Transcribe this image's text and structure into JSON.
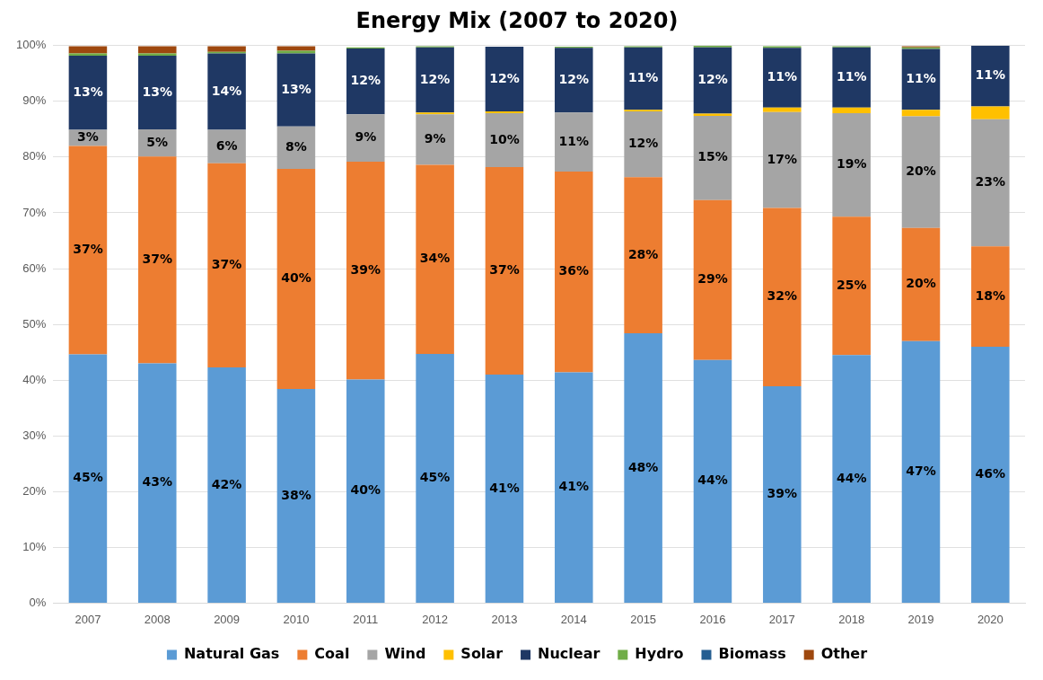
{
  "chart_data": {
    "type": "bar",
    "title": "Energy Mix (2007 to 2020)",
    "stacked": true,
    "grid": "y",
    "legend": "bottom",
    "categories": [
      "2007",
      "2008",
      "2009",
      "2010",
      "2011",
      "2012",
      "2013",
      "2014",
      "2015",
      "2016",
      "2017",
      "2018",
      "2019",
      "2020"
    ],
    "ylim": [
      0,
      100
    ],
    "yticks": [
      {
        "value": 0,
        "label": "0%"
      },
      {
        "value": 10,
        "label": "10%"
      },
      {
        "value": 20,
        "label": "20%"
      },
      {
        "value": 30,
        "label": "30%"
      },
      {
        "value": 40,
        "label": "40%"
      },
      {
        "value": 50,
        "label": "50%"
      },
      {
        "value": 60,
        "label": "60%"
      },
      {
        "value": 70,
        "label": "70%"
      },
      {
        "value": 80,
        "label": "80%"
      },
      {
        "value": 90,
        "label": "90%"
      },
      {
        "value": 100,
        "label": "100%"
      }
    ],
    "series": [
      {
        "name": "Natural Gas",
        "color": "#5b9bd5",
        "values": [
          44.6,
          43.0,
          42.3,
          38.4,
          40.1,
          44.7,
          41.0,
          41.4,
          48.4,
          43.6,
          38.9,
          44.5,
          47.0,
          46.0
        ],
        "value_labels": [
          "45%",
          "43%",
          "42%",
          "38%",
          "40%",
          "45%",
          "41%",
          "41%",
          "48%",
          "44%",
          "39%",
          "44%",
          "47%",
          "46%"
        ]
      },
      {
        "name": "Coal",
        "color": "#ed7d31",
        "values": [
          37.4,
          37.1,
          36.6,
          39.5,
          39.1,
          33.9,
          37.2,
          36.0,
          28.0,
          28.7,
          32.0,
          24.8,
          20.3,
          18.0
        ],
        "value_labels": [
          "37%",
          "37%",
          "37%",
          "40%",
          "39%",
          "34%",
          "37%",
          "36%",
          "28%",
          "29%",
          "32%",
          "25%",
          "20%",
          "18%"
        ]
      },
      {
        "name": "Wind",
        "color": "#a5a5a5",
        "values": [
          2.9,
          4.9,
          6.0,
          7.6,
          8.5,
          9.1,
          9.7,
          10.6,
          11.8,
          15.1,
          17.2,
          18.6,
          20.0,
          22.8
        ],
        "value_labels": [
          "3%",
          "5%",
          "6%",
          "8%",
          "9%",
          "9%",
          "10%",
          "11%",
          "12%",
          "15%",
          "17%",
          "19%",
          "20%",
          "23%"
        ]
      },
      {
        "name": "Solar",
        "color": "#ffc000",
        "values": [
          0,
          0,
          0,
          0,
          null,
          0.3,
          0.3,
          null,
          0.3,
          0.4,
          0.8,
          1.0,
          1.2,
          2.3
        ]
      },
      {
        "name": "Nuclear",
        "color": "#1f3864",
        "values": [
          13.3,
          13.2,
          13.7,
          13.1,
          11.8,
          11.7,
          11.6,
          11.6,
          11.2,
          11.9,
          10.7,
          10.8,
          10.9,
          10.9
        ],
        "value_labels": [
          "13%",
          "13%",
          "14%",
          "13%",
          "12%",
          "12%",
          "12%",
          "12%",
          "11%",
          "12%",
          "11%",
          "11%",
          "11%",
          "11%"
        ]
      },
      {
        "name": "Hydro",
        "color": "#70ad47",
        "values": [
          0.4,
          0.4,
          0.3,
          0.5,
          0.2,
          0.2,
          null,
          0.2,
          0.2,
          0.3,
          0.3,
          0.2,
          0.3,
          0
        ]
      },
      {
        "name": "Biomass",
        "color": "#255e91",
        "values": [
          null,
          null,
          null,
          null,
          null,
          null,
          null,
          null,
          null,
          null,
          null,
          null,
          null,
          null
        ]
      },
      {
        "name": "Other",
        "color": "#9e480e",
        "values": [
          1.3,
          1.3,
          1.0,
          0.8,
          null,
          0,
          null,
          0,
          0,
          0,
          0,
          0,
          0.2,
          0
        ]
      }
    ]
  }
}
